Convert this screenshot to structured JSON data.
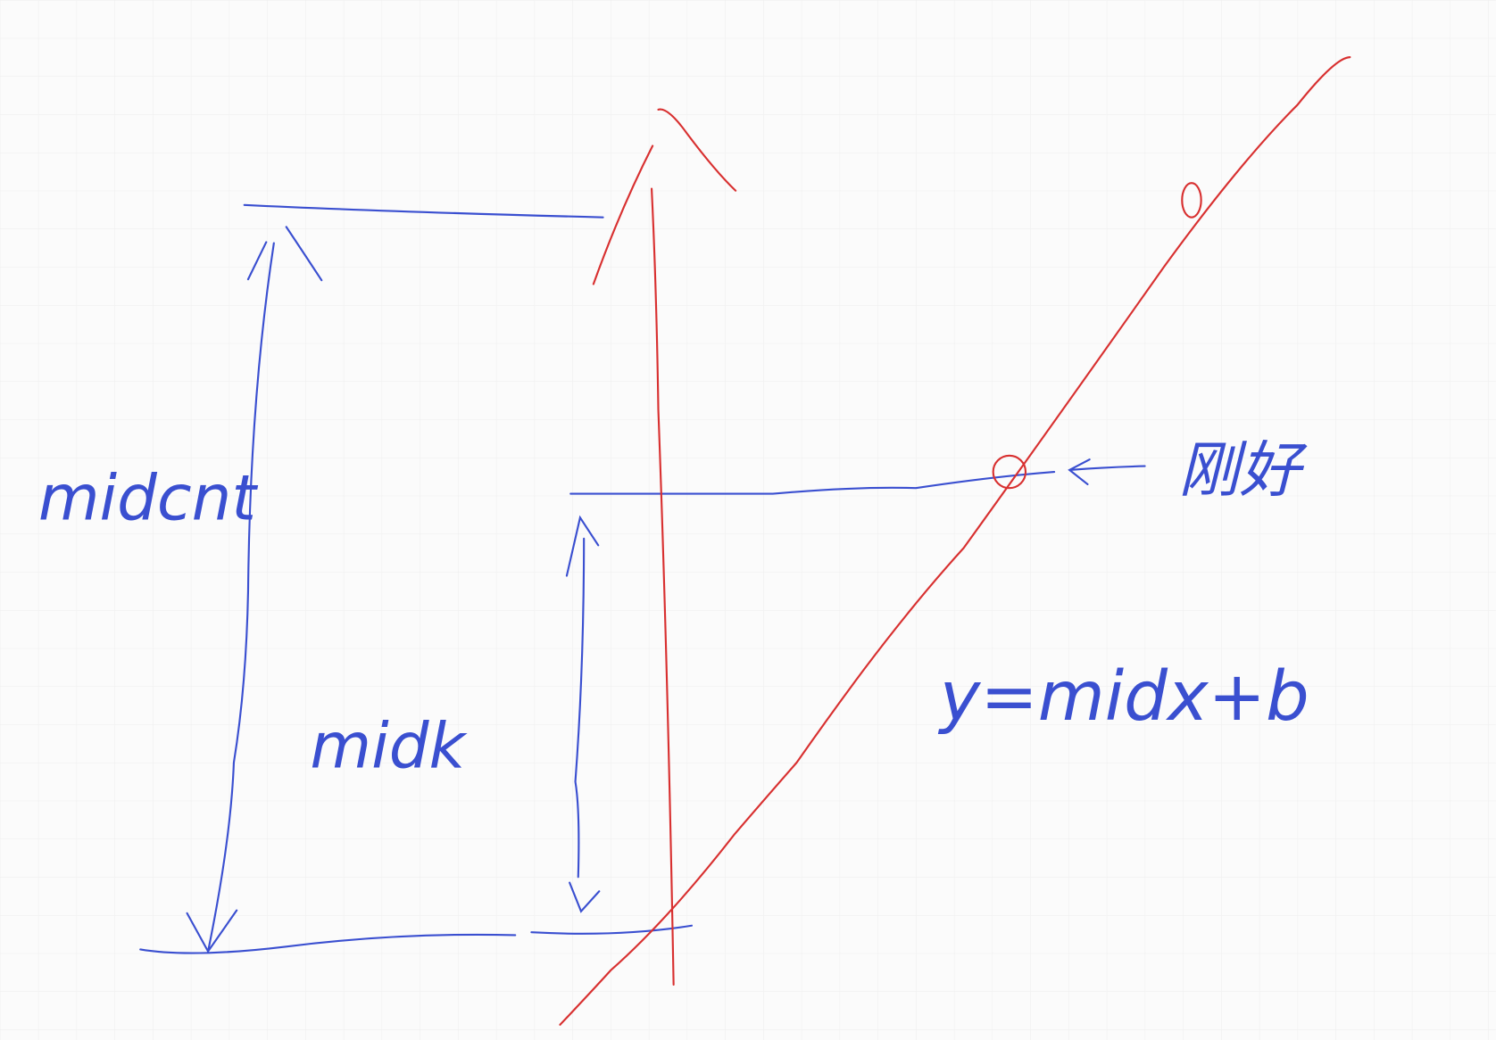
{
  "labels": {
    "left_height": "midcnt",
    "inner_height": "midk",
    "equation": "y=midx+b",
    "marker_note": "刚好"
  }
}
